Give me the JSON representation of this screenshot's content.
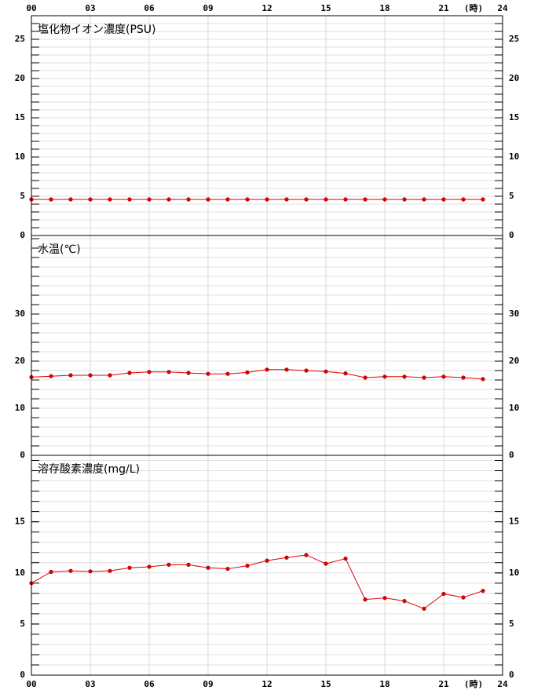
{
  "x_axis": {
    "xlim": [
      0,
      24
    ],
    "unit_label": "(時)",
    "xticks": [
      {
        "value": 0,
        "label": "00"
      },
      {
        "value": 3,
        "label": "03"
      },
      {
        "value": 6,
        "label": "06"
      },
      {
        "value": 9,
        "label": "09"
      },
      12,
      15,
      18,
      21,
      24
    ]
  },
  "chart_data": [
    {
      "type": "line",
      "title": "塩化物イオン濃度(PSU)",
      "color": "#e00000",
      "x": [
        0,
        1,
        2,
        3,
        4,
        5,
        6,
        7,
        8,
        9,
        10,
        11,
        12,
        13,
        14,
        15,
        16,
        17,
        18,
        19,
        20,
        21,
        22,
        23
      ],
      "values": [
        4.6,
        4.6,
        4.6,
        4.6,
        4.6,
        4.6,
        4.6,
        4.6,
        4.6,
        4.6,
        4.6,
        4.6,
        4.6,
        4.6,
        4.6,
        4.6,
        4.6,
        4.6,
        4.6,
        4.6,
        4.6,
        4.6,
        4.6,
        4.6
      ],
      "ylim": [
        0,
        28
      ],
      "yticks": [
        0,
        5,
        10,
        15,
        20,
        25
      ],
      "grid": true,
      "grid_step": 1
    },
    {
      "type": "line",
      "title": "水温(℃)",
      "color": "#e00000",
      "x": [
        0,
        1,
        2,
        3,
        4,
        5,
        6,
        7,
        8,
        9,
        10,
        11,
        12,
        13,
        14,
        15,
        16,
        17,
        18,
        19,
        20,
        21,
        22,
        23
      ],
      "values": [
        16.6,
        16.8,
        17.0,
        17.0,
        17.0,
        17.5,
        17.7,
        17.7,
        17.5,
        17.3,
        17.3,
        17.6,
        18.2,
        18.2,
        18.0,
        17.8,
        17.4,
        16.5,
        16.7,
        16.7,
        16.5,
        16.7,
        16.5,
        16.2
      ],
      "ylim": [
        0,
        46.67
      ],
      "yticks": [
        0,
        10,
        20,
        30
      ],
      "grid": true,
      "grid_step": 2
    },
    {
      "type": "line",
      "title": "溶存酸素濃度(mg/L)",
      "color": "#e00000",
      "x": [
        0,
        1,
        2,
        3,
        4,
        5,
        6,
        7,
        8,
        9,
        10,
        11,
        12,
        13,
        14,
        15,
        16,
        17,
        18,
        19,
        20,
        21,
        22,
        23
      ],
      "values": [
        9.0,
        10.1,
        10.2,
        10.15,
        10.2,
        10.5,
        10.6,
        10.8,
        10.8,
        10.5,
        10.4,
        10.7,
        11.2,
        11.5,
        11.75,
        10.9,
        11.4,
        7.4,
        7.55,
        7.25,
        6.5,
        7.95,
        7.6,
        8.25
      ],
      "ylim": [
        0,
        21.5
      ],
      "yticks": [
        0,
        5,
        10,
        15
      ],
      "grid": true,
      "grid_step": 1
    }
  ]
}
